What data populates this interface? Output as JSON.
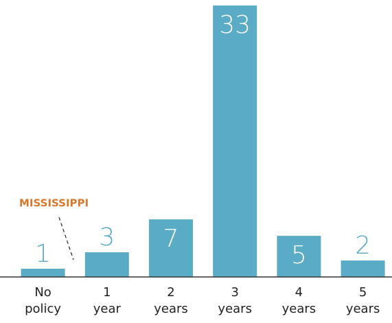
{
  "chart_data": {
    "type": "bar",
    "categories": [
      "No policy",
      "1 year",
      "2 years",
      "3 years",
      "4 years",
      "5 years"
    ],
    "values": [
      1,
      3,
      7,
      33,
      5,
      2
    ],
    "color": "#5aabc5",
    "annotation": "MISSISSIPPI",
    "annotation_color": "#d9782d"
  }
}
